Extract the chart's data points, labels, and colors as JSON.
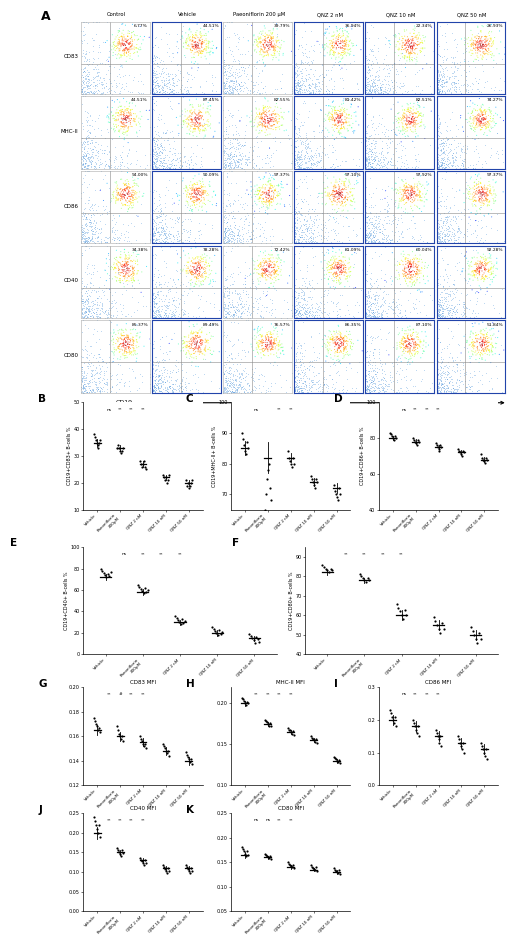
{
  "panel_A_labels_col": [
    "Control",
    "Vehicle",
    "Paeoniflorin 200 μM",
    "QNZ 2 nM",
    "QNZ 10 nM",
    "QNZ 50 nM"
  ],
  "panel_A_labels_row": [
    "CD83",
    "MHC-II",
    "CD86",
    "CD40",
    "CD80"
  ],
  "panel_A_percentages": [
    [
      "6.77%",
      "44.51%",
      "39.79%",
      "36.94%",
      "22.34%",
      "26.93%"
    ],
    [
      "44.51%",
      "87.45%",
      "82.55%",
      "81.42%",
      "82.51%",
      "74.27%"
    ],
    [
      "94.00%",
      "90.09%",
      "97.37%",
      "97.10%",
      "97.92%",
      "97.37%"
    ],
    [
      "34.38%",
      "78.28%",
      "72.42%",
      "81.09%",
      "60.04%",
      "92.28%"
    ],
    [
      "85.37%",
      "89.49%",
      "76.57%",
      "86.35%",
      "87.10%",
      "51.84%"
    ]
  ],
  "x_labels_5": [
    "Vehicle",
    "Paeoniflorin\n200μM",
    "QNZ 2 nM",
    "QNZ 10 nM",
    "QNZ 50 nM"
  ],
  "B_ylabel": "CD19+CD83+ B-cells %",
  "C_ylabel": "CD19+MHC-II+ B-cells %",
  "D_ylabel": "CD19+CD86+ B-cells %",
  "E_ylabel": "CD19+CD40+ B-cells %",
  "F_ylabel": "CD19+CD80+ B-cells %",
  "B_data": {
    "means": [
      35,
      33,
      27,
      22,
      20
    ],
    "scatter": [
      [
        38,
        37,
        36,
        35,
        34,
        33,
        35,
        36
      ],
      [
        33,
        34,
        33,
        32,
        31,
        32,
        33
      ],
      [
        28,
        27,
        26,
        27,
        28,
        26,
        25
      ],
      [
        23,
        22,
        21,
        22,
        20,
        21,
        23
      ],
      [
        21,
        19,
        20,
        18,
        19,
        20,
        21
      ]
    ],
    "sig": [
      "ns",
      "**",
      "**",
      "**"
    ],
    "ylim": [
      10,
      50
    ],
    "yticks": [
      10,
      20,
      30,
      40,
      50
    ]
  },
  "C_data": {
    "means": [
      85,
      82,
      82,
      74,
      72
    ],
    "scatter": [
      [
        90,
        88,
        86,
        84,
        83,
        87,
        85
      ],
      [
        65,
        70,
        75,
        78,
        80,
        72,
        68
      ],
      [
        84,
        82,
        81,
        80,
        79,
        82,
        80
      ],
      [
        76,
        75,
        74,
        73,
        72,
        75,
        74
      ],
      [
        73,
        71,
        70,
        69,
        68,
        72,
        70
      ]
    ],
    "sig": [
      "ns",
      "",
      "**",
      "**"
    ],
    "ylim": [
      65,
      100
    ],
    "yticks": [
      70,
      75,
      80,
      85,
      90,
      95,
      100
    ]
  },
  "D_data": {
    "means": [
      80,
      78,
      75,
      72,
      68
    ],
    "scatter": [
      [
        83,
        82,
        81,
        80,
        79,
        81,
        80
      ],
      [
        80,
        79,
        78,
        77,
        76,
        79,
        78
      ],
      [
        77,
        76,
        75,
        74,
        73,
        76,
        75
      ],
      [
        74,
        73,
        72,
        71,
        70,
        73,
        72
      ],
      [
        71,
        69,
        68,
        67,
        66,
        69,
        68
      ]
    ],
    "sig": [
      "ns",
      "**",
      "**",
      "**"
    ],
    "ylim": [
      40,
      100
    ],
    "yticks": [
      40,
      60,
      80,
      100
    ]
  },
  "E_data": {
    "means": [
      72,
      58,
      30,
      20,
      15
    ],
    "scatter": [
      [
        80,
        78,
        76,
        74,
        72,
        75,
        73,
        77
      ],
      [
        65,
        63,
        61,
        59,
        57,
        62,
        58,
        60
      ],
      [
        36,
        34,
        32,
        30,
        28,
        33,
        29,
        31
      ],
      [
        26,
        24,
        22,
        20,
        18,
        23,
        19,
        21
      ],
      [
        19,
        17,
        15,
        13,
        11,
        16,
        14,
        12
      ]
    ],
    "sig": [
      "ns",
      "**",
      "**",
      "**"
    ],
    "ylim": [
      0,
      100
    ],
    "yticks": [
      0,
      20,
      40,
      60,
      80,
      100
    ]
  },
  "F_data": {
    "means": [
      82,
      78,
      60,
      55,
      50
    ],
    "scatter": [
      [
        86,
        85,
        84,
        83,
        82,
        84,
        83
      ],
      [
        81,
        80,
        79,
        78,
        77,
        79,
        78
      ],
      [
        66,
        64,
        62,
        60,
        58,
        63,
        60
      ],
      [
        59,
        57,
        55,
        53,
        51,
        56,
        53
      ],
      [
        54,
        52,
        50,
        48,
        46,
        51,
        48
      ]
    ],
    "sig": [
      "**",
      "**",
      "**",
      "**"
    ],
    "ylim": [
      40,
      95
    ],
    "yticks": [
      40,
      50,
      60,
      70,
      80,
      90
    ]
  },
  "G_data": {
    "means": [
      0.165,
      0.16,
      0.155,
      0.148,
      0.14
    ],
    "scatter": [
      [
        0.175,
        0.172,
        0.17,
        0.168,
        0.165,
        0.167,
        0.163
      ],
      [
        0.168,
        0.165,
        0.162,
        0.16,
        0.158,
        0.16,
        0.156
      ],
      [
        0.16,
        0.158,
        0.156,
        0.154,
        0.152,
        0.154,
        0.15
      ],
      [
        0.154,
        0.152,
        0.15,
        0.148,
        0.146,
        0.148,
        0.144
      ],
      [
        0.147,
        0.145,
        0.143,
        0.141,
        0.139,
        0.141,
        0.137
      ]
    ],
    "sig": [
      "**",
      "#",
      "**",
      "**"
    ],
    "ylim": [
      0.12,
      0.2
    ],
    "yticks": [
      0.12,
      0.14,
      0.16,
      0.18,
      0.2
    ]
  },
  "H_data": {
    "means": [
      0.2,
      0.175,
      0.165,
      0.155,
      0.13
    ],
    "scatter": [
      [
        0.207,
        0.205,
        0.203,
        0.201,
        0.198,
        0.202,
        0.2
      ],
      [
        0.18,
        0.178,
        0.177,
        0.175,
        0.173,
        0.176,
        0.172
      ],
      [
        0.17,
        0.168,
        0.167,
        0.165,
        0.163,
        0.166,
        0.162
      ],
      [
        0.16,
        0.158,
        0.157,
        0.155,
        0.153,
        0.156,
        0.152
      ],
      [
        0.135,
        0.133,
        0.132,
        0.13,
        0.128,
        0.131,
        0.127
      ]
    ],
    "sig": [
      "**",
      "**",
      "**",
      "**"
    ],
    "ylim": [
      0.1,
      0.22
    ],
    "yticks": [
      0.1,
      0.15,
      0.2
    ]
  },
  "I_data": {
    "means": [
      0.2,
      0.18,
      0.15,
      0.13,
      0.11
    ],
    "scatter": [
      [
        0.23,
        0.22,
        0.21,
        0.2,
        0.19,
        0.21,
        0.18
      ],
      [
        0.2,
        0.19,
        0.18,
        0.17,
        0.16,
        0.18,
        0.15
      ],
      [
        0.17,
        0.16,
        0.15,
        0.14,
        0.13,
        0.15,
        0.12
      ],
      [
        0.15,
        0.14,
        0.13,
        0.12,
        0.11,
        0.13,
        0.1
      ],
      [
        0.13,
        0.12,
        0.11,
        0.1,
        0.09,
        0.11,
        0.08
      ]
    ],
    "sig": [
      "ns",
      "**",
      "**",
      "**"
    ],
    "ylim": [
      0.0,
      0.3
    ],
    "yticks": [
      0.0,
      0.1,
      0.2,
      0.3
    ]
  },
  "J_data": {
    "means": [
      0.2,
      0.15,
      0.13,
      0.11,
      0.11
    ],
    "scatter": [
      [
        0.24,
        0.23,
        0.22,
        0.21,
        0.2,
        0.22,
        0.19
      ],
      [
        0.162,
        0.157,
        0.152,
        0.147,
        0.142,
        0.155,
        0.148
      ],
      [
        0.137,
        0.132,
        0.127,
        0.122,
        0.117,
        0.13,
        0.122
      ],
      [
        0.117,
        0.112,
        0.107,
        0.102,
        0.097,
        0.11,
        0.103
      ],
      [
        0.117,
        0.112,
        0.107,
        0.102,
        0.097,
        0.11,
        0.103
      ]
    ],
    "sig": [
      "**",
      "**",
      "**",
      "**"
    ],
    "ylim": [
      0.0,
      0.25
    ],
    "yticks": [
      0.0,
      0.05,
      0.1,
      0.15,
      0.2,
      0.25
    ]
  },
  "K_data": {
    "means": [
      0.165,
      0.16,
      0.14,
      0.135,
      0.13
    ],
    "scatter": [
      [
        0.182,
        0.177,
        0.172,
        0.167,
        0.162,
        0.172,
        0.165
      ],
      [
        0.167,
        0.164,
        0.162,
        0.16,
        0.158,
        0.162,
        0.156
      ],
      [
        0.15,
        0.147,
        0.144,
        0.142,
        0.14,
        0.145,
        0.138
      ],
      [
        0.144,
        0.141,
        0.139,
        0.137,
        0.135,
        0.14,
        0.132
      ],
      [
        0.138,
        0.135,
        0.133,
        0.131,
        0.129,
        0.134,
        0.127
      ]
    ],
    "sig": [
      "ns",
      "ns",
      "**",
      "**"
    ],
    "ylim": [
      0.05,
      0.25
    ],
    "yticks": [
      0.05,
      0.1,
      0.15,
      0.2,
      0.25
    ]
  }
}
